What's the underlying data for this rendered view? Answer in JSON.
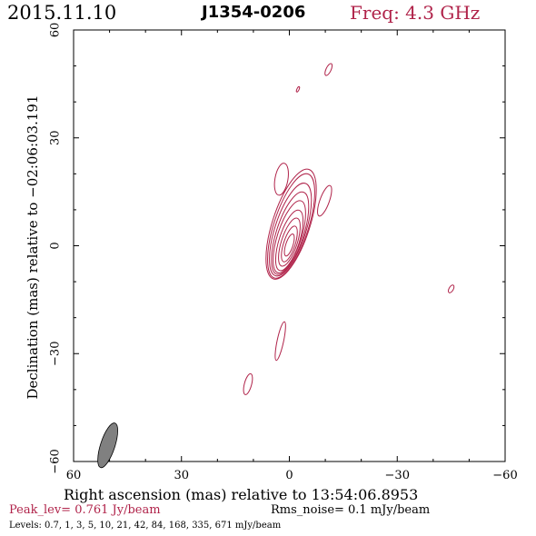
{
  "header": {
    "date": "2015.11.10",
    "source": "J1354-0206",
    "frequency": "Freq: 4.3 GHz"
  },
  "footer": {
    "peak": "Peak_lev=  0.761 Jy/beam",
    "rms": "Rms_noise=  0.1 mJy/beam",
    "levels": "Levels: 0.7,    1,    3,    5,   10,   21,   42,   84, 168, 335, 671 mJy/beam"
  },
  "colors": {
    "contour": "#b0234a",
    "beam": "#808080",
    "axis": "#000000"
  },
  "chart_data": {
    "type": "contour",
    "xlabel": "Right ascension (mas) relative to 13:54:06.8953",
    "ylabel": "Declination (mas) relative to −02:06:03.191",
    "xlim": [
      60,
      -60
    ],
    "ylim": [
      -60,
      60
    ],
    "x_ticks": [
      "60",
      "30",
      "0",
      "−30",
      "−60"
    ],
    "y_ticks": [
      "60",
      "30",
      "0",
      "−30",
      "−60"
    ],
    "x_tick_values": [
      60,
      30,
      0,
      -30,
      -60
    ],
    "y_tick_values": [
      60,
      30,
      0,
      -30,
      -60
    ],
    "peak_jy_per_beam": 0.761,
    "rms_mjy_per_beam": 0.1,
    "contour_levels_mjy": [
      0.7,
      1,
      3,
      5,
      10,
      21,
      42,
      84,
      168,
      335,
      671
    ],
    "core": {
      "ra": 0,
      "dec": 0,
      "rings": [
        {
          "ra": -0.5,
          "dec": 6.0,
          "a": 5.2,
          "b": 16.0,
          "pa": 18
        },
        {
          "ra": -0.5,
          "dec": 5.5,
          "a": 4.8,
          "b": 15.2,
          "pa": 18
        },
        {
          "ra": -0.3,
          "dec": 4.5,
          "a": 4.3,
          "b": 13.5,
          "pa": 18
        },
        {
          "ra": -0.2,
          "dec": 3.5,
          "a": 3.8,
          "b": 12.0,
          "pa": 18
        },
        {
          "ra": 0.0,
          "dec": 2.5,
          "a": 3.3,
          "b": 10.5,
          "pa": 18
        },
        {
          "ra": 0.0,
          "dec": 1.5,
          "a": 2.8,
          "b": 8.8,
          "pa": 18
        },
        {
          "ra": 0.0,
          "dec": 1.0,
          "a": 2.2,
          "b": 7.0,
          "pa": 18
        },
        {
          "ra": 0.0,
          "dec": 0.5,
          "a": 1.6,
          "b": 5.2,
          "pa": 18
        },
        {
          "ra": 0.0,
          "dec": 0.2,
          "a": 1.0,
          "b": 3.2,
          "pa": 18
        }
      ]
    },
    "features": [
      {
        "ra": 2.2,
        "dec": 18.5,
        "a": 1.8,
        "b": 4.5,
        "pa": 10
      },
      {
        "ra": -9.8,
        "dec": 12.5,
        "a": 1.3,
        "b": 4.5,
        "pa": 20
      },
      {
        "ra": -10.9,
        "dec": 49.0,
        "a": 0.7,
        "b": 1.8,
        "pa": 25
      },
      {
        "ra": -2.4,
        "dec": 43.5,
        "a": 0.3,
        "b": 0.8,
        "pa": 25
      },
      {
        "ra": -45.0,
        "dec": -12.0,
        "a": 0.6,
        "b": 1.2,
        "pa": 30
      },
      {
        "ra": 2.5,
        "dec": -26.5,
        "a": 0.9,
        "b": 5.5,
        "pa": 12
      },
      {
        "ra": 11.5,
        "dec": -38.5,
        "a": 1.0,
        "b": 3.0,
        "pa": 15
      }
    ],
    "beam": {
      "ra": 50.5,
      "dec": -55.5,
      "a": 2.0,
      "b": 6.5,
      "pa": 18
    }
  }
}
